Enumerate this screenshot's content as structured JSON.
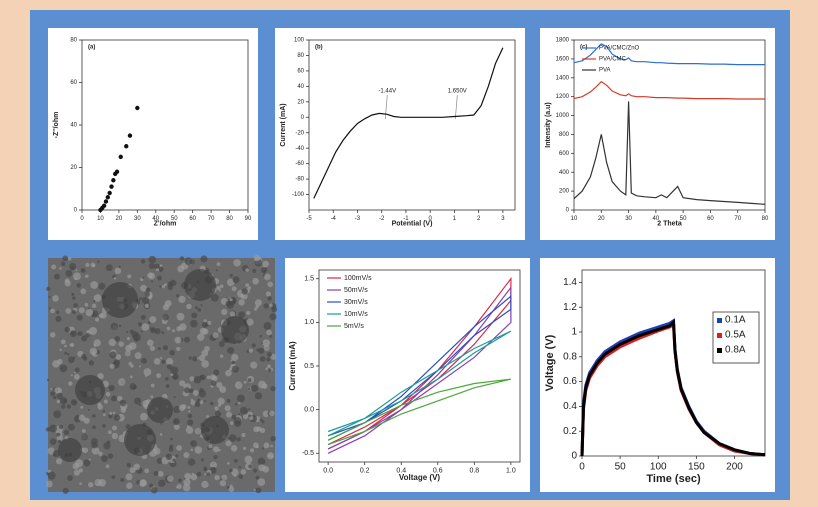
{
  "chart_data": [
    {
      "type": "scatter",
      "label": "(a)",
      "x_label": "Z'/ohm",
      "y_label": "-Z''/ohm",
      "xlim": [
        0,
        90
      ],
      "xticks": [
        0,
        10,
        20,
        30,
        40,
        50,
        60,
        70,
        80,
        90
      ],
      "ylim": [
        0,
        80
      ],
      "yticks": [
        0,
        20,
        40,
        60,
        80
      ],
      "series": [
        {
          "color": "#111111",
          "x": [
            10,
            11,
            12,
            13,
            14,
            15,
            16,
            17,
            18,
            19,
            21,
            24,
            26,
            30
          ],
          "values": [
            0,
            1,
            2,
            4,
            6,
            8,
            11,
            14,
            17,
            18,
            25,
            30,
            35,
            48
          ]
        }
      ]
    },
    {
      "type": "line",
      "label": "(b)",
      "x_label": "Potential (V)",
      "y_label": "Current (mA)",
      "annotations": [
        "-1.44V",
        "1.650V"
      ],
      "xlim": [
        -5,
        3.5
      ],
      "xticks": [
        -5,
        -4,
        -3,
        -2,
        -1,
        0,
        1,
        2,
        3
      ],
      "ylim": [
        -120,
        100
      ],
      "yticks": [
        -100,
        -80,
        -60,
        -40,
        -20,
        0,
        20,
        40,
        60,
        80,
        100
      ],
      "x": [
        -4.8,
        -4.5,
        -4.2,
        -3.9,
        -3.6,
        -3.3,
        -3.0,
        -2.7,
        -2.4,
        -2.1,
        -1.8,
        -1.5,
        -1.2,
        -0.5,
        0,
        0.5,
        1.0,
        1.5,
        1.8,
        2.1,
        2.4,
        2.7,
        3.0
      ],
      "series": [
        {
          "color": "#111111",
          "values": [
            -105,
            -85,
            -65,
            -45,
            -30,
            -18,
            -8,
            -2,
            3,
            5,
            4,
            1,
            0,
            0,
            0,
            0,
            1,
            2,
            3,
            15,
            40,
            70,
            90
          ]
        }
      ]
    },
    {
      "type": "line",
      "label": "(c)",
      "x_label": "2 Theta",
      "y_label": "Intensity (a.u)",
      "xlim": [
        10,
        80
      ],
      "xticks": [
        10,
        20,
        30,
        40,
        50,
        60,
        70,
        80
      ],
      "ylim": [
        0,
        1800
      ],
      "yticks": [
        0,
        200,
        400,
        600,
        800,
        1000,
        1200,
        1400,
        1600,
        1800
      ],
      "x": [
        10,
        13,
        16,
        18,
        20,
        22,
        24,
        27,
        29,
        30,
        31,
        33,
        36,
        40,
        42,
        44,
        48,
        50,
        55,
        60,
        65,
        70,
        75,
        80
      ],
      "series": [
        {
          "name": "PVA/CMC/ZnO",
          "color": "#2a6fd6",
          "values": [
            1560,
            1580,
            1640,
            1700,
            1760,
            1730,
            1650,
            1600,
            1590,
            1610,
            1580,
            1570,
            1570,
            1560,
            1560,
            1555,
            1550,
            1550,
            1550,
            1545,
            1545,
            1540,
            1540,
            1540
          ]
        },
        {
          "name": "PVA/CMC",
          "color": "#d63a2a",
          "values": [
            1180,
            1200,
            1250,
            1300,
            1360,
            1320,
            1260,
            1220,
            1210,
            1230,
            1210,
            1200,
            1200,
            1190,
            1190,
            1190,
            1185,
            1185,
            1180,
            1180,
            1180,
            1175,
            1175,
            1175
          ]
        },
        {
          "name": "PVA",
          "color": "#333333",
          "values": [
            120,
            200,
            350,
            550,
            800,
            500,
            300,
            200,
            160,
            1150,
            180,
            150,
            140,
            130,
            160,
            130,
            250,
            130,
            110,
            100,
            90,
            80,
            70,
            60
          ]
        }
      ]
    },
    {
      "type": "line",
      "x_label": "Voltage (V)",
      "y_label": "Current (mA)",
      "xlim": [
        -0.05,
        1.05
      ],
      "xticks": [
        {
          "value": 0,
          "label": "0.0"
        },
        0.2,
        0.4,
        0.6,
        0.8,
        {
          "value": 1,
          "label": "1.0"
        }
      ],
      "ylim": [
        -0.6,
        1.6
      ],
      "yticks": [
        -0.5,
        {
          "value": 0,
          "label": "0.0"
        },
        0.5,
        {
          "value": 1,
          "label": "1.0"
        },
        1.5
      ],
      "x": [
        0,
        0.2,
        0.4,
        0.6,
        0.8,
        1,
        1,
        0.8,
        0.6,
        0.4,
        0.2,
        0
      ],
      "series": [
        {
          "name": "100mV/s",
          "color": "#d62a4a",
          "values": [
            -0.45,
            -0.25,
            0.05,
            0.45,
            0.95,
            1.5,
            1.25,
            0.75,
            0.35,
            0.05,
            -0.2,
            -0.4
          ]
        },
        {
          "name": "50mV/s",
          "color": "#8a3fb0",
          "values": [
            -0.5,
            -0.3,
            0,
            0.4,
            0.85,
            1.4,
            1.0,
            0.6,
            0.3,
            0,
            -0.25,
            -0.45
          ]
        },
        {
          "name": "30mV/s",
          "color": "#2a4fc0",
          "values": [
            -0.35,
            -0.15,
            0.15,
            0.55,
            0.95,
            1.3,
            1.15,
            0.85,
            0.45,
            0.1,
            -0.15,
            -0.3
          ]
        },
        {
          "name": "10mV/s",
          "color": "#1f9a9a",
          "values": [
            -0.3,
            -0.1,
            0.2,
            0.45,
            0.7,
            0.9,
            0.9,
            0.65,
            0.35,
            0.1,
            -0.1,
            -0.25
          ]
        },
        {
          "name": "5mV/s",
          "color": "#4aa83a",
          "values": [
            -0.4,
            -0.25,
            -0.05,
            0.1,
            0.25,
            0.35,
            0.35,
            0.3,
            0.2,
            0.05,
            -0.15,
            -0.35
          ]
        }
      ]
    },
    {
      "type": "line",
      "x_label": "Time (sec)",
      "y_label": "Voltage (V)",
      "xlim": [
        0,
        240
      ],
      "xticks": [
        0,
        50,
        100,
        150,
        200
      ],
      "ylim": [
        0,
        1.5
      ],
      "yticks": [
        0,
        0.2,
        0.4,
        0.6,
        0.8,
        1,
        1.2,
        1.4
      ],
      "x": [
        0,
        2,
        5,
        10,
        20,
        30,
        50,
        75,
        100,
        115,
        120,
        122,
        125,
        130,
        140,
        150,
        160,
        180,
        200,
        220,
        240
      ],
      "series": [
        {
          "name": "0.1A",
          "color": "#1f3fb0",
          "values": [
            0,
            0.42,
            0.57,
            0.67,
            0.77,
            0.84,
            0.92,
            0.99,
            1.04,
            1.07,
            1.09,
            0.86,
            0.7,
            0.55,
            0.4,
            0.28,
            0.2,
            0.1,
            0.05,
            0.02,
            0.01
          ]
        },
        {
          "name": "0.5A",
          "color": "#d62020",
          "values": [
            0,
            0.38,
            0.53,
            0.63,
            0.73,
            0.8,
            0.88,
            0.95,
            1.01,
            1.04,
            1.06,
            0.84,
            0.68,
            0.53,
            0.38,
            0.27,
            0.19,
            0.09,
            0.04,
            0.02,
            0.01
          ]
        },
        {
          "name": "0.8A",
          "color": "#000000",
          "values": [
            0,
            0.4,
            0.55,
            0.65,
            0.75,
            0.82,
            0.9,
            0.97,
            1.02,
            1.05,
            1.08,
            0.85,
            0.69,
            0.54,
            0.39,
            0.27,
            0.19,
            0.1,
            0.05,
            0.02,
            0.01
          ]
        }
      ]
    }
  ]
}
